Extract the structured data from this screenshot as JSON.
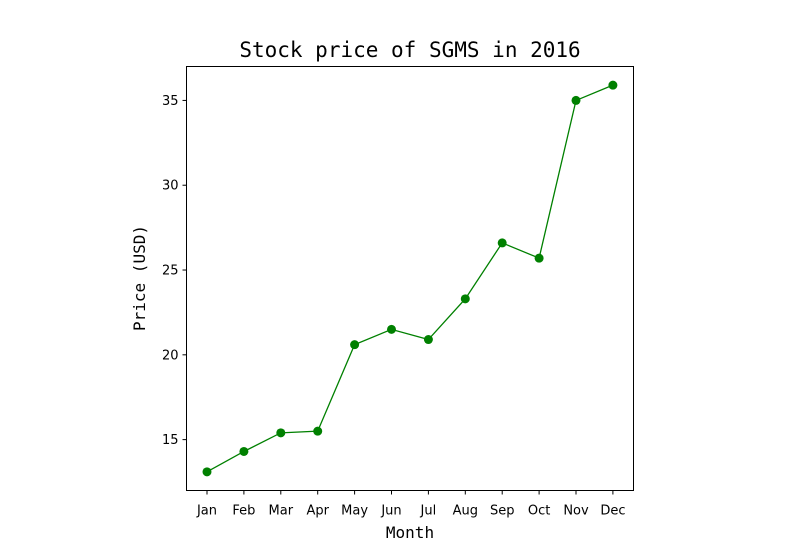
{
  "chart_data": {
    "type": "line",
    "title": "Stock price of SGMS in 2016",
    "xlabel": "Month",
    "ylabel": "Price (USD)",
    "categories": [
      "Jan",
      "Feb",
      "Mar",
      "Apr",
      "May",
      "Jun",
      "Jul",
      "Aug",
      "Sep",
      "Oct",
      "Nov",
      "Dec"
    ],
    "series": [
      {
        "values": [
          13.1,
          14.3,
          15.4,
          15.5,
          20.6,
          21.5,
          20.9,
          23.3,
          26.6,
          25.7,
          35.0,
          35.9
        ],
        "color": "#008000",
        "marker": "circle"
      }
    ],
    "yticks": [
      15,
      20,
      25,
      30,
      35
    ],
    "ylim": [
      12.0,
      37.0
    ],
    "grid": false,
    "legend": false
  }
}
